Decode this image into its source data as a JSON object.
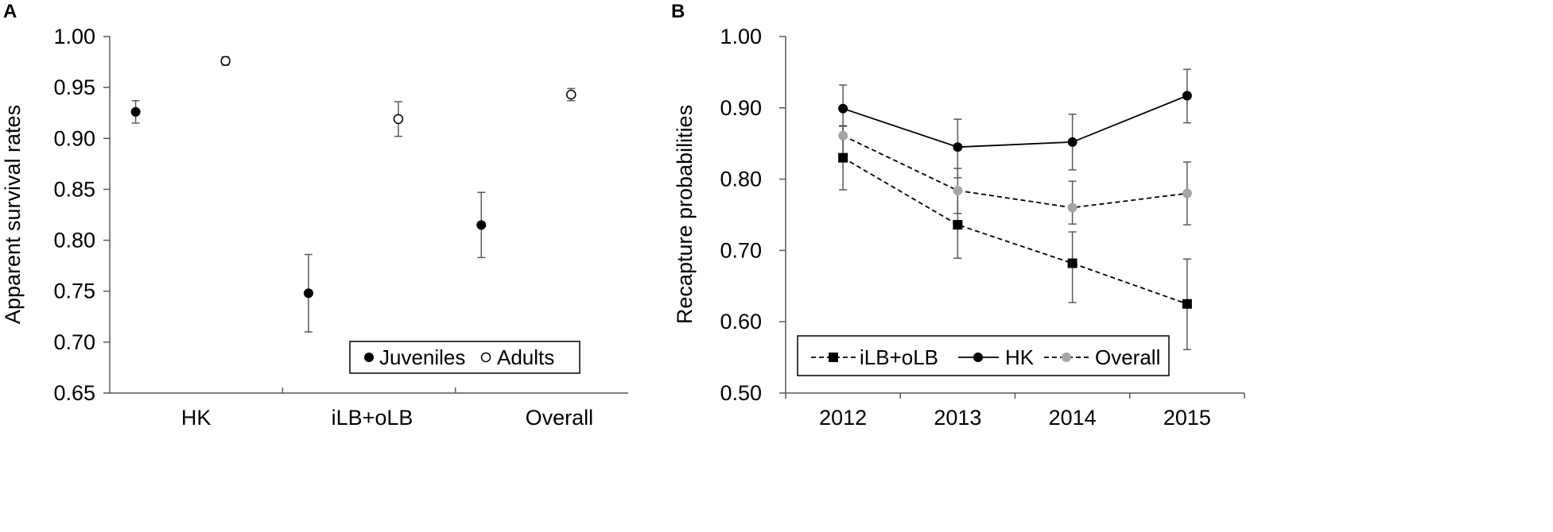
{
  "chart_data": [
    {
      "panel_label": "A",
      "type": "scatter",
      "title": "",
      "xlabel": "",
      "ylabel": "Apparent survival rates",
      "categories": [
        "HK",
        "iLB+oLB",
        "Overall"
      ],
      "yticks": [
        "0.65",
        "0.70",
        "0.75",
        "0.80",
        "0.85",
        "0.90",
        "0.95",
        "1.00"
      ],
      "ylim": [
        0.65,
        1.0
      ],
      "grid": false,
      "legend_position": "bottom-right",
      "series": [
        {
          "name": "Juveniles",
          "marker": "filled-circle",
          "color": "#000000",
          "values": [
            0.926,
            0.748,
            0.815
          ],
          "lower": [
            0.915,
            0.71,
            0.783
          ],
          "upper": [
            0.937,
            0.786,
            0.847
          ]
        },
        {
          "name": "Adults",
          "marker": "open-circle",
          "color": "#000000",
          "values": [
            0.976,
            0.919,
            0.943
          ],
          "lower": [
            0.972,
            0.902,
            0.937
          ],
          "upper": [
            0.98,
            0.936,
            0.949
          ]
        }
      ]
    },
    {
      "panel_label": "B",
      "type": "line",
      "title": "",
      "xlabel": "",
      "ylabel": "Recapture probabilities",
      "categories": [
        "2012",
        "2013",
        "2014",
        "2015"
      ],
      "yticks": [
        "0.50",
        "0.60",
        "0.70",
        "0.80",
        "0.90",
        "1.00"
      ],
      "ylim": [
        0.5,
        1.0
      ],
      "grid": false,
      "legend_position": "bottom-center",
      "series": [
        {
          "name": "iLB+oLB",
          "marker": "square",
          "line": "dashed",
          "color": "#000000",
          "values": [
            0.83,
            0.736,
            0.682,
            0.625
          ],
          "lower": [
            0.785,
            0.689,
            0.627,
            0.561
          ],
          "upper": [
            0.874,
            0.782,
            0.726,
            0.688
          ]
        },
        {
          "name": "HK",
          "marker": "circle",
          "line": "solid",
          "color": "#000000",
          "values": [
            0.899,
            0.845,
            0.852,
            0.917
          ],
          "lower": [
            0.859,
            0.802,
            0.813,
            0.879
          ],
          "upper": [
            0.932,
            0.884,
            0.891,
            0.954
          ]
        },
        {
          "name": "Overall",
          "marker": "circle",
          "line": "dashed",
          "color": "#a6a6a6",
          "values": [
            0.861,
            0.784,
            0.76,
            0.78
          ],
          "lower": [
            0.834,
            0.752,
            0.737,
            0.736
          ],
          "upper": [
            0.875,
            0.815,
            0.797,
            0.824
          ]
        }
      ]
    }
  ]
}
